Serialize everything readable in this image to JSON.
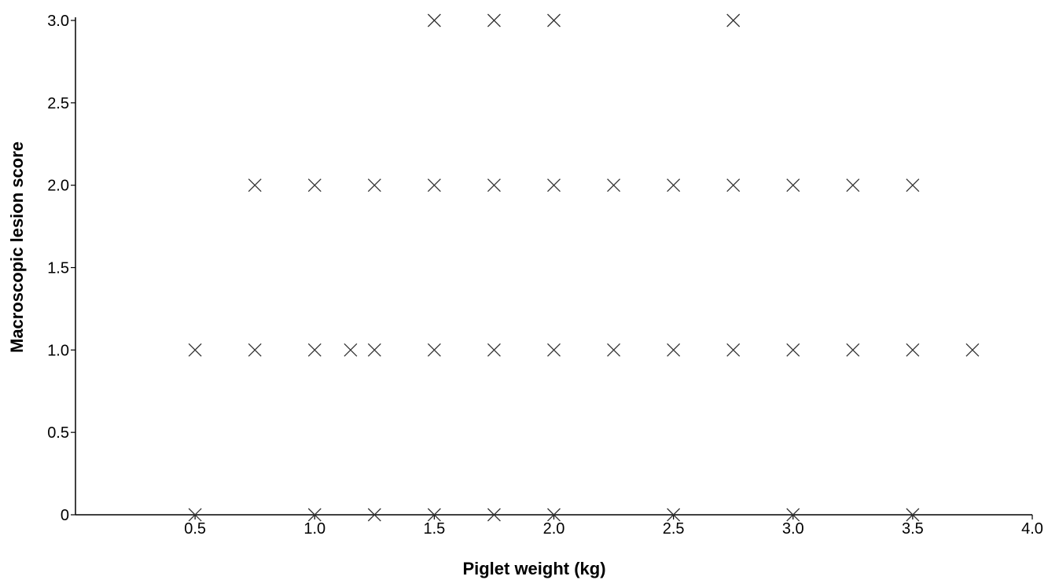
{
  "chart_data": {
    "type": "scatter",
    "title": "",
    "xlabel": "Piglet weight (kg)",
    "ylabel": "Macroscopic lesion score",
    "xlim": [
      0,
      4.0
    ],
    "ylim": [
      0,
      3.0
    ],
    "x_ticks": [
      0.5,
      1.0,
      1.5,
      2.0,
      2.5,
      3.0,
      3.5,
      4.0
    ],
    "x_tick_labels": [
      "0.5",
      "1.0",
      "1.5",
      "2.0",
      "2.5",
      "3.0",
      "3.5",
      "4.0"
    ],
    "y_ticks": [
      0,
      0.5,
      1.0,
      1.5,
      2.0,
      2.5,
      3.0
    ],
    "y_tick_labels": [
      "0",
      "0.5",
      "1.0",
      "1.5",
      "2.0",
      "2.5",
      "3.0"
    ],
    "grid": false,
    "marker": "x",
    "marker_color": "#333333",
    "series": [
      {
        "points": [
          {
            "x": 1.5,
            "y": 3.0
          },
          {
            "x": 1.75,
            "y": 3.0
          },
          {
            "x": 2.0,
            "y": 3.0
          },
          {
            "x": 2.75,
            "y": 3.0
          },
          {
            "x": 0.75,
            "y": 2.0
          },
          {
            "x": 1.0,
            "y": 2.0
          },
          {
            "x": 1.25,
            "y": 2.0
          },
          {
            "x": 1.5,
            "y": 2.0
          },
          {
            "x": 1.75,
            "y": 2.0
          },
          {
            "x": 2.0,
            "y": 2.0
          },
          {
            "x": 2.25,
            "y": 2.0
          },
          {
            "x": 2.5,
            "y": 2.0
          },
          {
            "x": 2.75,
            "y": 2.0
          },
          {
            "x": 3.0,
            "y": 2.0
          },
          {
            "x": 3.25,
            "y": 2.0
          },
          {
            "x": 3.5,
            "y": 2.0
          },
          {
            "x": 0.5,
            "y": 1.0
          },
          {
            "x": 0.75,
            "y": 1.0
          },
          {
            "x": 1.0,
            "y": 1.0
          },
          {
            "x": 1.15,
            "y": 1.0
          },
          {
            "x": 1.25,
            "y": 1.0
          },
          {
            "x": 1.5,
            "y": 1.0
          },
          {
            "x": 1.75,
            "y": 1.0
          },
          {
            "x": 2.0,
            "y": 1.0
          },
          {
            "x": 2.25,
            "y": 1.0
          },
          {
            "x": 2.5,
            "y": 1.0
          },
          {
            "x": 2.75,
            "y": 1.0
          },
          {
            "x": 3.0,
            "y": 1.0
          },
          {
            "x": 3.25,
            "y": 1.0
          },
          {
            "x": 3.5,
            "y": 1.0
          },
          {
            "x": 3.75,
            "y": 1.0
          },
          {
            "x": 0.5,
            "y": 0
          },
          {
            "x": 1.0,
            "y": 0
          },
          {
            "x": 1.25,
            "y": 0
          },
          {
            "x": 1.5,
            "y": 0
          },
          {
            "x": 1.75,
            "y": 0
          },
          {
            "x": 2.0,
            "y": 0
          },
          {
            "x": 2.5,
            "y": 0
          },
          {
            "x": 3.0,
            "y": 0
          },
          {
            "x": 3.5,
            "y": 0
          }
        ]
      }
    ]
  }
}
